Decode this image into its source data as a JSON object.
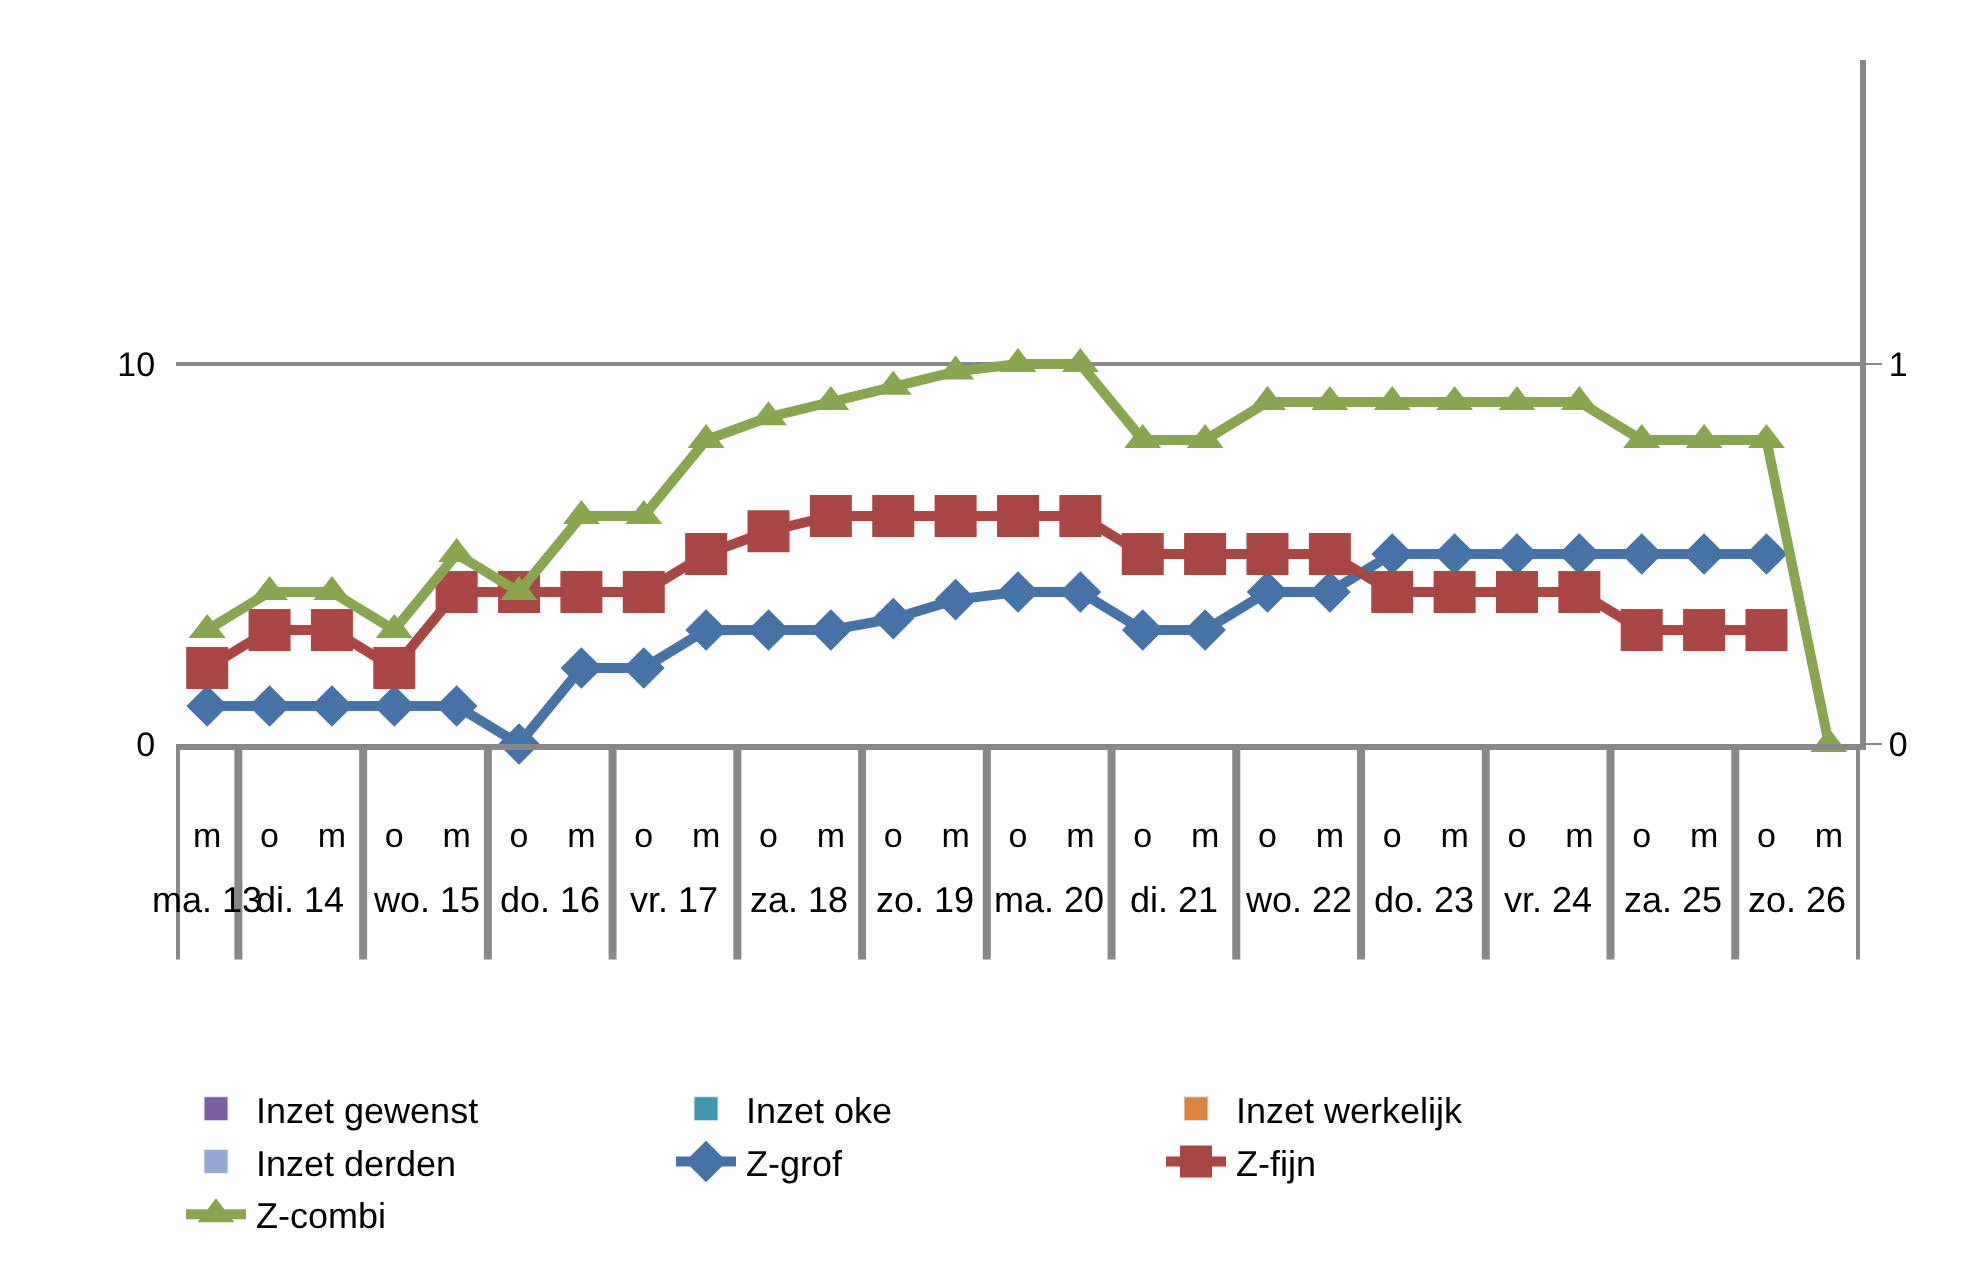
{
  "chart_data": {
    "type": "line",
    "categories": [
      "m",
      "o",
      "m",
      "o",
      "m",
      "o",
      "m",
      "o",
      "m",
      "o",
      "m",
      "o",
      "m",
      "o",
      "m",
      "o",
      "m",
      "o",
      "m",
      "o",
      "m",
      "o",
      "m",
      "o",
      "m",
      "o",
      "m"
    ],
    "annotations": [
      "ma. 13",
      "di. 14",
      "wo. 15",
      "do. 16",
      "vr. 17",
      "za. 18",
      "zo. 19",
      "ma. 20",
      "di. 21",
      "wo. 22",
      "do. 23",
      "vr. 24",
      "za. 25",
      "zo. 26"
    ],
    "series": [
      {
        "name": "Inzet gewenst",
        "type": "bar",
        "axis": "y2",
        "color": "#7b5fa0",
        "values": [
          null,
          null,
          null,
          null,
          null,
          null,
          null,
          null,
          null,
          null,
          null,
          null,
          null,
          null,
          null,
          null,
          null,
          null,
          null,
          null,
          null,
          null,
          null,
          null,
          null,
          null,
          null
        ]
      },
      {
        "name": "Inzet oke",
        "type": "bar",
        "axis": "y2",
        "color": "#4198af",
        "values": [
          null,
          null,
          null,
          null,
          null,
          null,
          null,
          null,
          null,
          null,
          null,
          null,
          null,
          null,
          null,
          null,
          null,
          null,
          null,
          null,
          null,
          null,
          null,
          null,
          null,
          null,
          null
        ]
      },
      {
        "name": "Inzet werkelijk",
        "type": "bar",
        "axis": "y2",
        "color": "#db843d",
        "values": [
          null,
          null,
          null,
          null,
          null,
          null,
          null,
          null,
          null,
          null,
          null,
          null,
          null,
          null,
          null,
          null,
          null,
          null,
          null,
          null,
          null,
          null,
          null,
          null,
          null,
          null,
          null
        ]
      },
      {
        "name": "Inzet derden",
        "type": "bar",
        "axis": "y2",
        "color": "#93a9cf",
        "values": [
          null,
          null,
          null,
          null,
          null,
          null,
          null,
          null,
          null,
          null,
          null,
          null,
          null,
          null,
          null,
          null,
          null,
          null,
          null,
          null,
          null,
          null,
          null,
          null,
          null,
          null,
          null
        ]
      },
      {
        "name": "Z-grof",
        "color": "#4572a7",
        "marker": "diamond",
        "values": [
          1,
          1,
          1,
          1,
          1,
          0,
          2,
          2,
          3,
          3,
          3,
          3.3,
          3.8,
          4,
          4,
          3,
          3,
          4,
          4,
          5,
          5,
          5,
          5,
          5,
          5,
          5,
          null
        ]
      },
      {
        "name": "Z-fijn",
        "color": "#aa4643",
        "marker": "square",
        "values": [
          2,
          3,
          3,
          2,
          4,
          4,
          4,
          4,
          5,
          5.6,
          6,
          6,
          6,
          6,
          6,
          5,
          5,
          5,
          5,
          4,
          4,
          4,
          4,
          3,
          3,
          3,
          null
        ]
      },
      {
        "name": "Z-combi",
        "color": "#89a54e",
        "marker": "triangle",
        "values": [
          3,
          4,
          4,
          3,
          5,
          4,
          6,
          6,
          8,
          8.6,
          9,
          9.4,
          9.8,
          10,
          10,
          8,
          8,
          9,
          9,
          9,
          9,
          9,
          9,
          8,
          8,
          8,
          0
        ]
      }
    ],
    "ylim": [
      0,
      18
    ],
    "yticks": [
      0,
      10
    ],
    "y2lim": [
      0,
      1.8
    ],
    "y2ticks": [
      0,
      1
    ],
    "grid": "y",
    "legend": "bottom"
  }
}
